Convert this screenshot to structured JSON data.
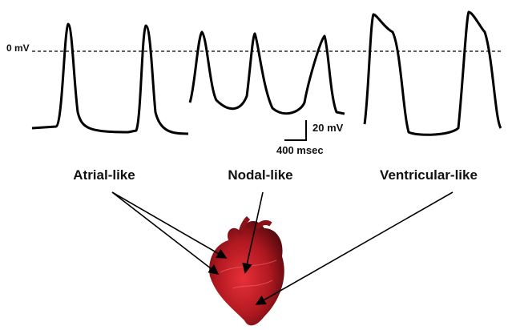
{
  "scale": {
    "zero_label": "0 mV",
    "voltage_label": "20 mV",
    "time_label": "400 msec"
  },
  "labels": {
    "atrial": "Atrial-like",
    "nodal": "Nodal-like",
    "ventricular": "Ventricular-like"
  }
}
